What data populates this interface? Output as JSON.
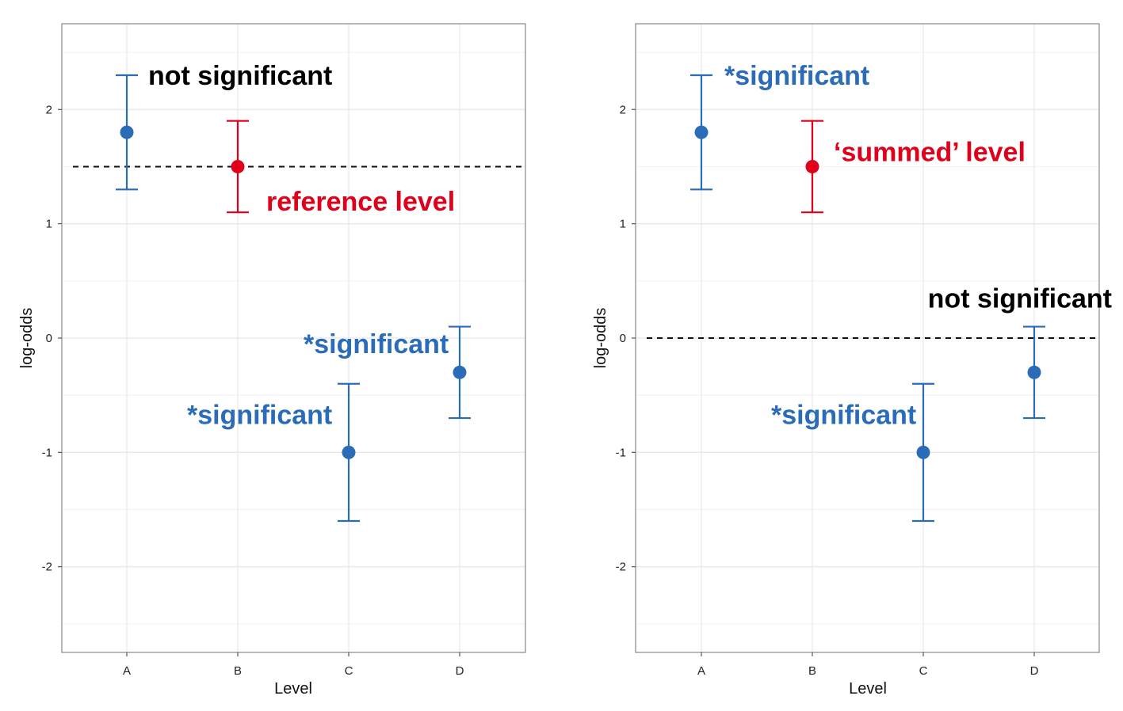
{
  "colors": {
    "significance": "#2b6cb8",
    "reference": "#e0001a",
    "neutral": "#000000"
  },
  "chart_data": [
    {
      "type": "scatter",
      "xlabel": "Level",
      "ylabel": "log-odds",
      "categories": [
        "A",
        "B",
        "C",
        "D"
      ],
      "yticks": [
        "-2",
        "-1",
        "0",
        "1",
        "2"
      ],
      "ylim": [
        -2.75,
        2.75
      ],
      "grid": true,
      "points": [
        {
          "x": "A",
          "y": 1.8,
          "low": 1.3,
          "high": 2.3,
          "color": "#2b6cb8"
        },
        {
          "x": "B",
          "y": 1.5,
          "low": 1.1,
          "high": 1.9,
          "color": "#e0001a"
        },
        {
          "x": "C",
          "y": -1.0,
          "low": -1.6,
          "high": -0.4,
          "color": "#2b6cb8"
        },
        {
          "x": "D",
          "y": -0.3,
          "low": -0.7,
          "high": 0.1,
          "color": "#2b6cb8"
        }
      ],
      "reference_line": 1.5,
      "annotations": [
        {
          "text": "not significant",
          "color": "#000000",
          "near": "A",
          "y": 2.3
        },
        {
          "text": "reference level",
          "color": "#e0001a",
          "near": "B",
          "y": 1.2
        },
        {
          "text": "*significant",
          "color": "#2b6cb8",
          "near": "D",
          "y": -0.05
        },
        {
          "text": "*significant",
          "color": "#2b6cb8",
          "near": "C",
          "y": -0.67
        }
      ]
    },
    {
      "type": "scatter",
      "xlabel": "Level",
      "ylabel": "log-odds",
      "categories": [
        "A",
        "B",
        "C",
        "D"
      ],
      "yticks": [
        "-2",
        "-1",
        "0",
        "1",
        "2"
      ],
      "ylim": [
        -2.75,
        2.75
      ],
      "grid": true,
      "points": [
        {
          "x": "A",
          "y": 1.8,
          "low": 1.3,
          "high": 2.3,
          "color": "#2b6cb8"
        },
        {
          "x": "B",
          "y": 1.5,
          "low": 1.1,
          "high": 1.9,
          "color": "#e0001a"
        },
        {
          "x": "C",
          "y": -1.0,
          "low": -1.6,
          "high": -0.4,
          "color": "#2b6cb8"
        },
        {
          "x": "D",
          "y": -0.3,
          "low": -0.7,
          "high": 0.1,
          "color": "#2b6cb8"
        }
      ],
      "reference_line": 0,
      "annotations": [
        {
          "text": "*significant",
          "color": "#2b6cb8",
          "near": "A",
          "y": 2.3
        },
        {
          "text": "‘summed’ level",
          "color": "#e0001a",
          "near": "B",
          "y": 1.63
        },
        {
          "text": "not significant",
          "color": "#000000",
          "near": "D",
          "y": 0.35
        },
        {
          "text": "*significant",
          "color": "#2b6cb8",
          "near": "C",
          "y": -0.67
        }
      ]
    }
  ]
}
